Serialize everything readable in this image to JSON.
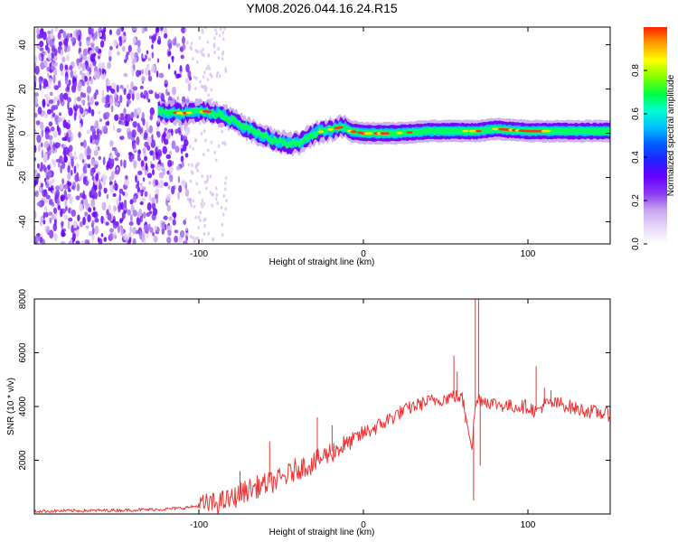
{
  "title": "YM08.2026.044.16.24.R15",
  "chart_data": [
    {
      "type": "heatmap",
      "title": "YM08.2026.044.16.24.R15",
      "xlabel": "Height of straight line (km)",
      "ylabel": "Frequency (Hz)",
      "xlim": [
        -200,
        150
      ],
      "ylim": [
        -50,
        48
      ],
      "xticks": [
        -100,
        0,
        100
      ],
      "yticks": [
        -40,
        -20,
        0,
        20,
        40
      ],
      "colorbar": {
        "label": "Normalized spectral amplitude",
        "range": [
          0,
          1
        ],
        "ticks": [
          0.0,
          0.2,
          0.4,
          0.6,
          0.8
        ],
        "colormap": [
          "#ffffff",
          "#e8d8f8",
          "#c8a8f0",
          "#8a3cf0",
          "#6a00ff",
          "#2020ff",
          "#0060ff",
          "#00c0ff",
          "#00ffd0",
          "#00ff40",
          "#80ff00",
          "#ffff00",
          "#ffa000",
          "#ff2000"
        ]
      },
      "ridge": {
        "x": [
          -125,
          -110,
          -95,
          -85,
          -75,
          -65,
          -55,
          -45,
          -38,
          -32,
          -25,
          -18,
          -12,
          -8,
          0,
          20,
          40,
          60,
          70,
          80,
          100,
          120,
          150
        ],
        "freq": [
          10,
          9,
          10,
          8,
          4,
          0,
          -3,
          -5,
          -4,
          -1,
          1,
          2,
          3,
          1,
          0,
          0,
          1,
          1,
          1,
          2,
          1,
          1,
          1
        ]
      }
    },
    {
      "type": "line",
      "xlabel": "Height of straight line (km)",
      "ylabel": "SNR (10 * v/v)",
      "xlim": [
        -200,
        150
      ],
      "ylim": [
        0,
        8000
      ],
      "xticks": [
        -100,
        0,
        100
      ],
      "yticks": [
        2000,
        4000,
        6000,
        8000
      ],
      "color": "#ee3333",
      "series": [
        {
          "name": "SNR",
          "x": [
            -200,
            -180,
            -160,
            -140,
            -120,
            -110,
            -100,
            -90,
            -80,
            -75,
            -70,
            -60,
            -50,
            -45,
            -40,
            -30,
            -25,
            -20,
            -10,
            0,
            10,
            20,
            30,
            40,
            50,
            55,
            60,
            63,
            66,
            68,
            70,
            75,
            80,
            90,
            100,
            105,
            110,
            120,
            130,
            140,
            150
          ],
          "y": [
            100,
            120,
            130,
            150,
            180,
            220,
            300,
            400,
            550,
            750,
            900,
            1100,
            1300,
            1500,
            1700,
            1900,
            2100,
            2300,
            2600,
            3000,
            3300,
            3700,
            4000,
            4200,
            4300,
            4400,
            4300,
            3500,
            2500,
            4000,
            4300,
            4200,
            4100,
            4000,
            4000,
            3800,
            4100,
            4100,
            3900,
            3800,
            3700
          ]
        }
      ],
      "spikes": [
        {
          "x": -75,
          "y": 1600
        },
        {
          "x": -57,
          "y": 2700
        },
        {
          "x": -28,
          "y": 3600
        },
        {
          "x": -19,
          "y": 3300
        },
        {
          "x": 55,
          "y": 5900
        },
        {
          "x": 57,
          "y": 5300
        },
        {
          "x": 62,
          "y": 3400
        },
        {
          "x": 67,
          "y": 500
        },
        {
          "x": 68,
          "y": 8000
        },
        {
          "x": 70,
          "y": 8000
        },
        {
          "x": 71,
          "y": 1800
        },
        {
          "x": 105,
          "y": 5500
        },
        {
          "x": 110,
          "y": 4700
        },
        {
          "x": 114,
          "y": 4600
        }
      ]
    }
  ]
}
